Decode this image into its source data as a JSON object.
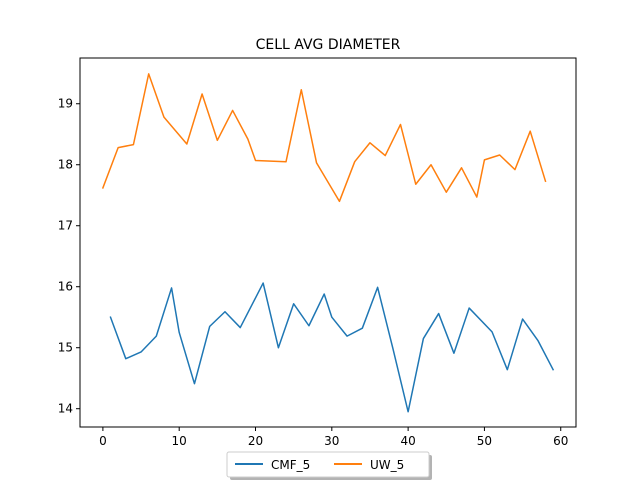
{
  "chart_data": {
    "type": "line",
    "title": "CELL AVG  DIAMETER",
    "xlabel": "",
    "ylabel": "",
    "xlim": [
      -3,
      62
    ],
    "ylim": [
      13.7,
      19.75
    ],
    "xticks": [
      0,
      10,
      20,
      30,
      40,
      50,
      60
    ],
    "yticks": [
      14,
      15,
      16,
      17,
      18,
      19
    ],
    "grid": false,
    "legend_position": "bottom-center",
    "series": [
      {
        "name": "CMF_5",
        "color": "#1f77b4",
        "x": [
          1,
          3,
          5,
          7,
          9,
          10,
          12,
          14,
          16,
          18,
          21,
          23,
          25,
          27,
          29,
          30,
          32,
          34,
          36,
          38,
          40,
          42,
          44,
          46,
          48,
          51,
          53,
          55,
          57,
          59
        ],
        "y": [
          15.5,
          14.82,
          14.93,
          15.19,
          15.98,
          15.25,
          14.41,
          15.35,
          15.59,
          15.33,
          16.06,
          15.0,
          15.72,
          15.36,
          15.88,
          15.5,
          15.19,
          15.32,
          15.99,
          14.99,
          13.95,
          15.15,
          15.56,
          14.91,
          15.65,
          15.26,
          14.64,
          15.47,
          15.12,
          14.64
        ]
      },
      {
        "name": "UW_5",
        "color": "#ff7f0e",
        "x": [
          0,
          2,
          4,
          6,
          8,
          11,
          13,
          15,
          17,
          19,
          20,
          24,
          26,
          28,
          31,
          33,
          35,
          37,
          39,
          41,
          43,
          45,
          47,
          49,
          50,
          52,
          54,
          56,
          58
        ],
        "y": [
          17.62,
          18.28,
          18.33,
          19.49,
          18.78,
          18.34,
          19.16,
          18.4,
          18.89,
          18.42,
          18.07,
          18.05,
          19.23,
          18.03,
          17.4,
          18.05,
          18.36,
          18.15,
          18.66,
          17.68,
          18.0,
          17.55,
          17.95,
          17.47,
          18.08,
          18.16,
          17.92,
          18.55,
          17.73
        ]
      }
    ]
  }
}
